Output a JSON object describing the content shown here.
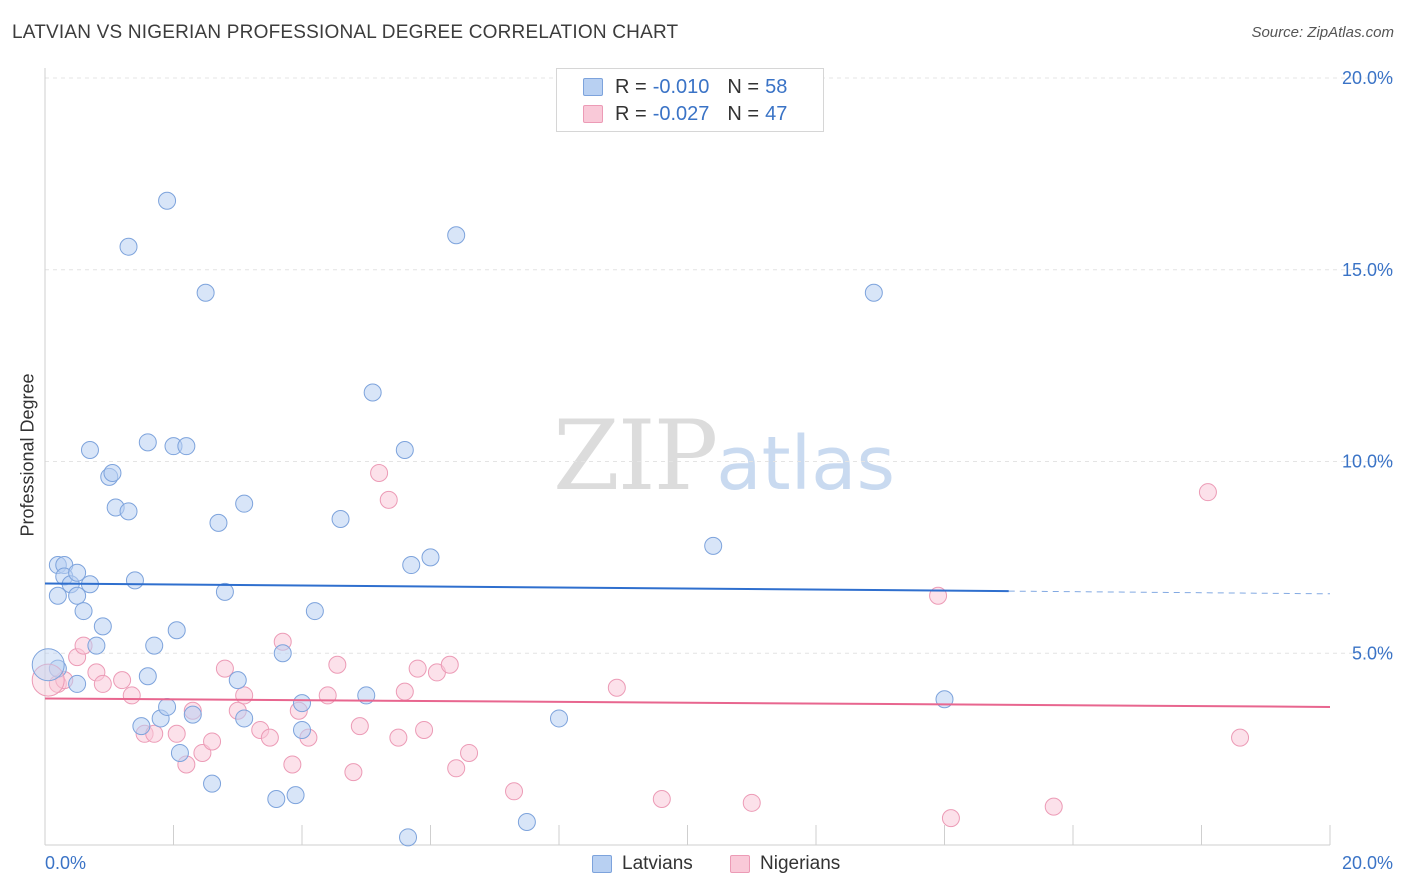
{
  "title": "LATVIAN VS NIGERIAN PROFESSIONAL DEGREE CORRELATION CHART",
  "source": "Source: ZipAtlas.com",
  "watermark": {
    "part1": "ZIP",
    "part2": "atlas"
  },
  "legend": {
    "r_label": "R =",
    "n_label": "N =",
    "rows": [
      {
        "r": "-0.010",
        "n": "58"
      },
      {
        "r": "-0.027",
        "n": "47"
      }
    ]
  },
  "colors": {
    "latvians_fill": "#b8d0f2",
    "latvians_stroke": "#7da3dc",
    "latvians_line": "#2f6fce",
    "nigerians_fill": "#f9c9d8",
    "nigerians_stroke": "#ec9bb6",
    "nigerians_line": "#e8668f",
    "axis_tick": "#3a73c6"
  },
  "chart_data": {
    "type": "scatter",
    "title": "LATVIAN VS NIGERIAN PROFESSIONAL DEGREE CORRELATION CHART",
    "xlabel": "",
    "ylabel": "Professional Degree",
    "xlim": [
      0,
      20
    ],
    "ylim": [
      0,
      20
    ],
    "x_tick_labels": [
      "0.0%",
      "20.0%"
    ],
    "y_tick_values": [
      5,
      10,
      15,
      20
    ],
    "y_tick_labels": [
      "5.0%",
      "10.0%",
      "15.0%",
      "20.0%"
    ],
    "grid": true,
    "legend_position": "top-center",
    "series": [
      {
        "name": "Latvians",
        "r": -0.01,
        "n": 58,
        "trend": {
          "x0": 0,
          "y0": 6.82,
          "x1": 15.0,
          "y1": 6.62,
          "dashed_to": 20.0,
          "dashed_y": 6.55
        },
        "points": [
          [
            0.2,
            6.5
          ],
          [
            0.2,
            7.3
          ],
          [
            0.3,
            7.3
          ],
          [
            0.3,
            7.0
          ],
          [
            0.4,
            6.8
          ],
          [
            0.5,
            7.1
          ],
          [
            0.5,
            6.5
          ],
          [
            0.6,
            6.1
          ],
          [
            0.7,
            10.3
          ],
          [
            0.7,
            6.8
          ],
          [
            0.8,
            5.2
          ],
          [
            0.9,
            5.7
          ],
          [
            1.0,
            9.6
          ],
          [
            1.05,
            9.7
          ],
          [
            1.1,
            8.8
          ],
          [
            1.3,
            8.7
          ],
          [
            1.3,
            15.6
          ],
          [
            1.4,
            6.9
          ],
          [
            1.5,
            3.1
          ],
          [
            1.6,
            4.4
          ],
          [
            1.6,
            10.5
          ],
          [
            1.7,
            5.2
          ],
          [
            1.8,
            3.3
          ],
          [
            1.9,
            3.6
          ],
          [
            1.9,
            16.8
          ],
          [
            2.0,
            10.4
          ],
          [
            2.05,
            5.6
          ],
          [
            2.1,
            2.4
          ],
          [
            2.2,
            10.4
          ],
          [
            2.3,
            3.4
          ],
          [
            2.5,
            14.4
          ],
          [
            2.6,
            1.6
          ],
          [
            2.7,
            8.4
          ],
          [
            2.8,
            6.6
          ],
          [
            3.0,
            4.3
          ],
          [
            3.1,
            3.3
          ],
          [
            3.1,
            8.9
          ],
          [
            3.6,
            1.2
          ],
          [
            3.7,
            5.0
          ],
          [
            3.9,
            1.3
          ],
          [
            4.0,
            3.7
          ],
          [
            4.0,
            3.0
          ],
          [
            4.2,
            6.1
          ],
          [
            4.6,
            8.5
          ],
          [
            5.0,
            3.9
          ],
          [
            5.1,
            11.8
          ],
          [
            5.6,
            10.3
          ],
          [
            5.65,
            0.2
          ],
          [
            5.7,
            7.3
          ],
          [
            6.0,
            7.5
          ],
          [
            6.4,
            15.9
          ],
          [
            7.5,
            0.6
          ],
          [
            8.0,
            3.3
          ],
          [
            10.4,
            7.8
          ],
          [
            12.9,
            14.4
          ],
          [
            14.0,
            3.8
          ],
          [
            0.2,
            4.6
          ],
          [
            0.5,
            4.2
          ]
        ]
      },
      {
        "name": "Nigerians",
        "r": -0.027,
        "n": 47,
        "trend": {
          "x0": 0,
          "y0": 3.82,
          "x1": 20.0,
          "y1": 3.6
        },
        "points": [
          [
            0.2,
            4.2
          ],
          [
            0.3,
            4.3
          ],
          [
            0.5,
            4.9
          ],
          [
            0.6,
            5.2
          ],
          [
            0.8,
            4.5
          ],
          [
            0.9,
            4.2
          ],
          [
            1.2,
            4.3
          ],
          [
            1.35,
            3.9
          ],
          [
            1.55,
            2.9
          ],
          [
            1.7,
            2.9
          ],
          [
            2.05,
            2.9
          ],
          [
            2.2,
            2.1
          ],
          [
            2.3,
            3.5
          ],
          [
            2.45,
            2.4
          ],
          [
            2.6,
            2.7
          ],
          [
            2.8,
            4.6
          ],
          [
            3.0,
            3.5
          ],
          [
            3.1,
            3.9
          ],
          [
            3.35,
            3.0
          ],
          [
            3.5,
            2.8
          ],
          [
            3.7,
            5.3
          ],
          [
            3.85,
            2.1
          ],
          [
            3.95,
            3.5
          ],
          [
            4.1,
            2.8
          ],
          [
            4.4,
            3.9
          ],
          [
            4.55,
            4.7
          ],
          [
            4.8,
            1.9
          ],
          [
            4.9,
            3.1
          ],
          [
            5.2,
            9.7
          ],
          [
            5.35,
            9.0
          ],
          [
            5.5,
            2.8
          ],
          [
            5.6,
            4.0
          ],
          [
            5.8,
            4.6
          ],
          [
            5.9,
            3.0
          ],
          [
            6.1,
            4.5
          ],
          [
            6.3,
            4.7
          ],
          [
            6.4,
            2.0
          ],
          [
            6.6,
            2.4
          ],
          [
            7.3,
            1.4
          ],
          [
            8.9,
            4.1
          ],
          [
            9.6,
            1.2
          ],
          [
            11.0,
            1.1
          ],
          [
            13.9,
            6.5
          ],
          [
            14.1,
            0.7
          ],
          [
            15.7,
            1.0
          ],
          [
            18.1,
            9.2
          ],
          [
            18.6,
            2.8
          ]
        ]
      }
    ]
  },
  "bottom_legend": {
    "latvians": "Latvians",
    "nigerians": "Nigerians"
  }
}
